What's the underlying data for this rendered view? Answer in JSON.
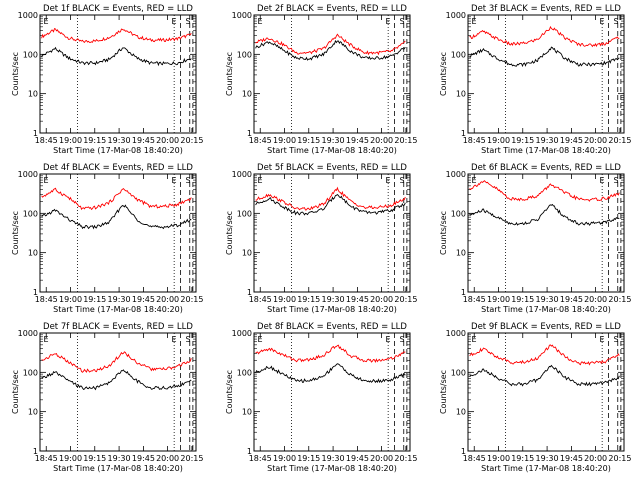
{
  "chart_data": [
    {
      "type": "line",
      "title": "Det 1f BLACK = Events, RED = LLD",
      "xlabel": "Start Time (17-Mar-08 18:40:20)",
      "ylabel": "Counts/sec",
      "x_ticks": [
        "18:45",
        "19:00",
        "19:15",
        "19:30",
        "19:45",
        "20:00",
        "20:15"
      ],
      "y_ticks": [
        "1",
        "10",
        "100",
        "1000"
      ],
      "yscale": "log",
      "ylim": [
        1,
        1000
      ],
      "markers": [
        "E",
        "E",
        "S"
      ],
      "series": [
        {
          "color": "#ff0000",
          "values": [
            280,
            420,
            260,
            210,
            220,
            270,
            450,
            280,
            230,
            230,
            250,
            320
          ]
        },
        {
          "color": "#000000",
          "values": [
            90,
            140,
            80,
            60,
            60,
            75,
            150,
            80,
            60,
            58,
            60,
            80
          ]
        }
      ]
    },
    {
      "type": "line",
      "title": "Det 2f BLACK = Events, RED = LLD",
      "xlabel": "Start Time (17-Mar-08 18:40:20)",
      "ylabel": "Counts/sec",
      "x_ticks": [
        "18:45",
        "19:00",
        "19:15",
        "19:30",
        "19:45",
        "20:00",
        "20:15"
      ],
      "y_ticks": [
        "1",
        "10",
        "100",
        "1000"
      ],
      "yscale": "log",
      "ylim": [
        1,
        1000
      ],
      "markers": [
        "E",
        "E",
        "S"
      ],
      "series": [
        {
          "color": "#ff0000",
          "values": [
            200,
            260,
            180,
            110,
            110,
            140,
            310,
            170,
            110,
            110,
            120,
            200
          ]
        },
        {
          "color": "#000000",
          "values": [
            150,
            210,
            130,
            80,
            78,
            100,
            230,
            120,
            80,
            80,
            90,
            150
          ]
        }
      ]
    },
    {
      "type": "line",
      "title": "Det 3f BLACK = Events, RED = LLD",
      "xlabel": "Start Time (17-Mar-08 18:40:20)",
      "ylabel": "Counts/sec",
      "x_ticks": [
        "18:45",
        "19:00",
        "19:15",
        "19:30",
        "19:45",
        "20:00",
        "20:15"
      ],
      "y_ticks": [
        "1",
        "10",
        "100",
        "1000"
      ],
      "yscale": "log",
      "ylim": [
        1,
        1000
      ],
      "markers": [
        "E",
        "E",
        "S"
      ],
      "series": [
        {
          "color": "#ff0000",
          "values": [
            260,
            380,
            250,
            180,
            190,
            240,
            500,
            260,
            180,
            170,
            190,
            280
          ]
        },
        {
          "color": "#000000",
          "values": [
            90,
            130,
            80,
            55,
            55,
            70,
            150,
            80,
            55,
            55,
            60,
            80
          ]
        }
      ]
    },
    {
      "type": "line",
      "title": "Det 4f BLACK = Events, RED = LLD",
      "xlabel": "Start Time (17-Mar-08 18:40:20)",
      "ylabel": "Counts/sec",
      "x_ticks": [
        "18:45",
        "19:00",
        "19:15",
        "19:30",
        "19:45",
        "20:00",
        "20:15"
      ],
      "y_ticks": [
        "1",
        "10",
        "100",
        "1000"
      ],
      "yscale": "log",
      "ylim": [
        1,
        1000
      ],
      "markers": [
        "E",
        "E",
        "S"
      ],
      "series": [
        {
          "color": "#ff0000",
          "values": [
            260,
            400,
            250,
            130,
            140,
            190,
            420,
            230,
            150,
            150,
            170,
            240
          ]
        },
        {
          "color": "#000000",
          "values": [
            80,
            120,
            70,
            45,
            45,
            60,
            170,
            70,
            45,
            45,
            50,
            70
          ]
        }
      ]
    },
    {
      "type": "line",
      "title": "Det 5f BLACK = Events, RED = LLD",
      "xlabel": "Start Time (17-Mar-08 18:40:20)",
      "ylabel": "Counts/sec",
      "x_ticks": [
        "18:45",
        "19:00",
        "19:15",
        "19:30",
        "19:45",
        "20:00",
        "20:15"
      ],
      "y_ticks": [
        "1",
        "10",
        "100",
        "1000"
      ],
      "yscale": "log",
      "ylim": [
        1,
        1000
      ],
      "markers": [
        "E",
        "E",
        "S"
      ],
      "series": [
        {
          "color": "#ff0000",
          "values": [
            220,
            300,
            200,
            130,
            130,
            170,
            420,
            200,
            140,
            140,
            160,
            240
          ]
        },
        {
          "color": "#000000",
          "values": [
            170,
            240,
            150,
            100,
            100,
            130,
            320,
            150,
            105,
            105,
            120,
            180
          ]
        }
      ]
    },
    {
      "type": "line",
      "title": "Det 6f BLACK = Events, RED = LLD",
      "xlabel": "Start Time (17-Mar-08 18:40:20)",
      "ylabel": "Counts/sec",
      "x_ticks": [
        "18:45",
        "19:00",
        "19:15",
        "19:30",
        "19:45",
        "20:00",
        "20:15"
      ],
      "y_ticks": [
        "1",
        "10",
        "100",
        "1000"
      ],
      "yscale": "log",
      "ylim": [
        1,
        1000
      ],
      "markers": [
        "E",
        "E",
        "S"
      ],
      "series": [
        {
          "color": "#ff0000",
          "values": [
            420,
            650,
            420,
            230,
            230,
            280,
            550,
            330,
            230,
            220,
            240,
            320
          ]
        },
        {
          "color": "#000000",
          "values": [
            90,
            120,
            80,
            55,
            55,
            70,
            170,
            80,
            55,
            55,
            60,
            80
          ]
        }
      ]
    },
    {
      "type": "line",
      "title": "Det 7f BLACK = Events, RED = LLD",
      "xlabel": "Start Time (17-Mar-08 18:40:20)",
      "ylabel": "Counts/sec",
      "x_ticks": [
        "18:45",
        "19:00",
        "19:15",
        "19:30",
        "19:45",
        "20:00",
        "20:15"
      ],
      "y_ticks": [
        "1",
        "10",
        "100",
        "1000"
      ],
      "yscale": "log",
      "ylim": [
        1,
        1000
      ],
      "markers": [
        "E",
        "E",
        "S"
      ],
      "series": [
        {
          "color": "#ff0000",
          "values": [
            200,
            300,
            180,
            110,
            110,
            150,
            330,
            180,
            120,
            120,
            140,
            210
          ]
        },
        {
          "color": "#000000",
          "values": [
            70,
            100,
            60,
            40,
            40,
            55,
            120,
            60,
            40,
            40,
            45,
            60
          ]
        }
      ]
    },
    {
      "type": "line",
      "title": "Det 8f BLACK = Events, RED = LLD",
      "xlabel": "Start Time (17-Mar-08 18:40:20)",
      "ylabel": "Counts/sec",
      "x_ticks": [
        "18:45",
        "19:00",
        "19:15",
        "19:30",
        "19:45",
        "20:00",
        "20:15"
      ],
      "y_ticks": [
        "1",
        "10",
        "100",
        "1000"
      ],
      "yscale": "log",
      "ylim": [
        1,
        1000
      ],
      "markers": [
        "E",
        "E",
        "S"
      ],
      "series": [
        {
          "color": "#ff0000",
          "values": [
            300,
            400,
            280,
            200,
            210,
            270,
            500,
            260,
            200,
            200,
            230,
            320
          ]
        },
        {
          "color": "#000000",
          "values": [
            100,
            140,
            90,
            60,
            62,
            80,
            170,
            85,
            60,
            60,
            65,
            90
          ]
        }
      ]
    },
    {
      "type": "line",
      "title": "Det 9f BLACK = Events, RED = LLD",
      "xlabel": "Start Time (17-Mar-08 18:40:20)",
      "ylabel": "Counts/sec",
      "x_ticks": [
        "18:45",
        "19:00",
        "19:15",
        "19:30",
        "19:45",
        "20:00",
        "20:15"
      ],
      "y_ticks": [
        "1",
        "10",
        "100",
        "1000"
      ],
      "yscale": "log",
      "ylim": [
        1,
        1000
      ],
      "markers": [
        "E",
        "E",
        "S"
      ],
      "series": [
        {
          "color": "#ff0000",
          "values": [
            270,
            390,
            250,
            180,
            180,
            230,
            500,
            250,
            170,
            170,
            190,
            280
          ]
        },
        {
          "color": "#000000",
          "values": [
            80,
            115,
            75,
            50,
            50,
            65,
            150,
            75,
            50,
            50,
            55,
            75
          ]
        }
      ]
    }
  ]
}
